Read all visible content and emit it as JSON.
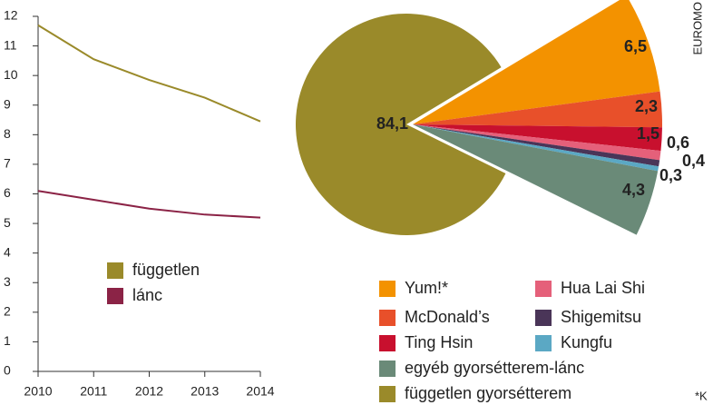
{
  "chart_data": [
    {
      "type": "line",
      "x": [
        2010,
        2011,
        2012,
        2013,
        2014
      ],
      "xlim": [
        2010,
        2014
      ],
      "xticks": [
        2010,
        2011,
        2012,
        2013,
        2014
      ],
      "ylim": [
        0,
        12
      ],
      "yticks": [
        0,
        1,
        2,
        3,
        4,
        5,
        6,
        7,
        8,
        9,
        10,
        11,
        12
      ],
      "series": [
        {
          "name": "független",
          "color": "#9a8a2a",
          "values": [
            11.7,
            10.55,
            9.85,
            9.25,
            8.45
          ]
        },
        {
          "name": "lánc",
          "color": "#8b2346",
          "values": [
            6.1,
            5.8,
            5.5,
            5.3,
            5.2
          ]
        }
      ]
    },
    {
      "type": "pie",
      "categories": [
        "Yum!*",
        "McDonald’s",
        "Ting Hsin",
        "Hua Lai Shi",
        "Shigemitsu",
        "Kungfu",
        "egyéb gyorsétterem-lánc",
        "független gyorsétterem"
      ],
      "values": [
        6.5,
        2.3,
        1.5,
        0.6,
        0.4,
        0.3,
        4.3,
        84.1
      ],
      "value_labels": [
        "6,5",
        "2,3",
        "1,5",
        "0,6",
        "0,4",
        "0,3",
        "4,3",
        "84,1"
      ],
      "colors": [
        "#f39200",
        "#e8502a",
        "#c8102e",
        "#e5607a",
        "#4a3558",
        "#5ba8c4",
        "#6a8a78",
        "#9a8a2a"
      ],
      "source": "EUROMO",
      "footnote": "*K"
    }
  ]
}
